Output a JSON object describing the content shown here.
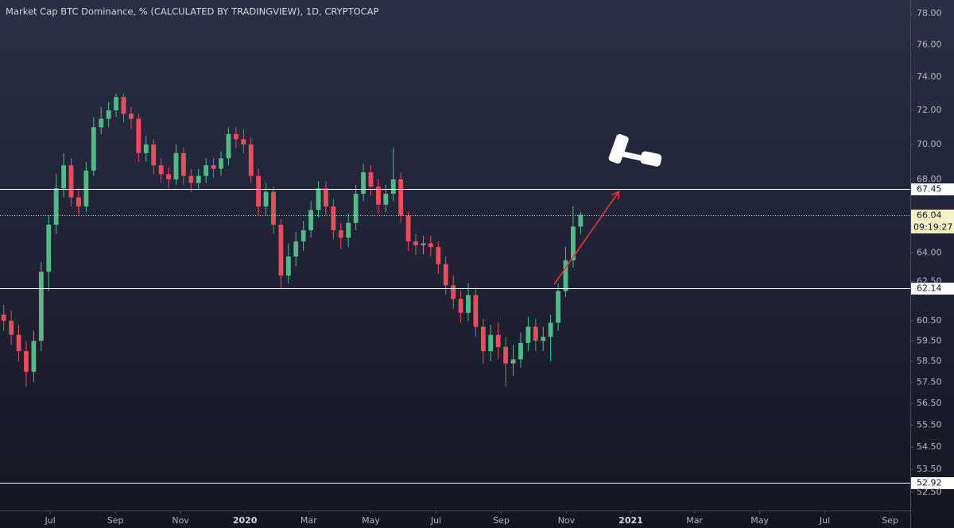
{
  "chart_data": {
    "type": "candlestick",
    "title": "Market Cap BTC Dominance, % (CALCULATED BY TRADINGVIEW), 1D, CRYPTOCAP",
    "categories": [
      null,
      null,
      null,
      null,
      null,
      null,
      null,
      null,
      null,
      null,
      null,
      null,
      null,
      null,
      null,
      null,
      null,
      null,
      null,
      null,
      null,
      null,
      null,
      null,
      null,
      null,
      null,
      null,
      null,
      null,
      null,
      null,
      null,
      null,
      null,
      null,
      null,
      null,
      null,
      null,
      null,
      null,
      null,
      null,
      null,
      null,
      null,
      null,
      null,
      null,
      null,
      null,
      null,
      null,
      null,
      null,
      null,
      null,
      null,
      null,
      null,
      null,
      null,
      null,
      null,
      null,
      null,
      null,
      null,
      null,
      null,
      null,
      null,
      null,
      null,
      null,
      null,
      null
    ],
    "open": [
      60.8,
      60.5,
      59.8,
      59.0,
      58.0,
      59.5,
      63.0,
      65.5,
      67.5,
      68.8,
      67.0,
      66.5,
      68.5,
      71.0,
      71.5,
      72.0,
      72.8,
      71.8,
      71.5,
      69.5,
      70.0,
      68.8,
      68.3,
      68.0,
      69.5,
      68.2,
      67.8,
      68.2,
      68.8,
      68.6,
      69.2,
      70.6,
      70.3,
      70.0,
      68.2,
      66.5,
      67.3,
      65.5,
      62.8,
      63.8,
      64.6,
      65.2,
      66.3,
      67.5,
      66.5,
      65.2,
      64.8,
      65.6,
      67.2,
      68.4,
      67.6,
      66.6,
      67.2,
      68.0,
      66.0,
      64.6,
      64.4,
      64.5,
      64.3,
      63.4,
      62.3,
      61.6,
      60.9,
      61.8,
      60.2,
      59.0,
      59.8,
      59.2,
      58.4,
      58.6,
      59.4,
      60.2,
      59.5,
      59.7,
      60.4,
      62.0,
      63.6,
      65.4
    ],
    "high": [
      61.3,
      61.0,
      60.3,
      59.5,
      60.0,
      63.5,
      66.0,
      68.3,
      69.5,
      69.2,
      67.5,
      69.0,
      71.6,
      72.2,
      72.5,
      73.0,
      73.0,
      72.2,
      71.8,
      70.5,
      70.3,
      69.2,
      68.7,
      70.0,
      69.8,
      68.6,
      68.6,
      69.2,
      69.2,
      69.6,
      71.0,
      71.0,
      70.9,
      70.4,
      68.6,
      67.8,
      67.6,
      65.8,
      64.5,
      65.1,
      65.7,
      66.8,
      67.9,
      67.9,
      66.9,
      65.6,
      66.1,
      67.7,
      68.9,
      68.8,
      68.0,
      67.7,
      69.8,
      68.4,
      66.2,
      65.0,
      64.9,
      64.9,
      64.6,
      63.8,
      62.8,
      62.0,
      62.4,
      62.1,
      60.6,
      60.3,
      60.4,
      59.7,
      59.3,
      59.9,
      60.7,
      60.6,
      60.2,
      60.8,
      62.4,
      64.3,
      66.5,
      66.2
    ],
    "low": [
      60.0,
      59.3,
      58.5,
      57.3,
      57.5,
      59.0,
      62.0,
      65.0,
      67.0,
      66.5,
      66.0,
      66.2,
      68.2,
      70.6,
      71.0,
      71.6,
      71.3,
      70.9,
      69.0,
      69.0,
      68.3,
      67.8,
      67.5,
      67.7,
      67.7,
      67.3,
      67.4,
      67.8,
      68.1,
      68.2,
      68.8,
      69.8,
      69.5,
      67.8,
      66.0,
      66.0,
      65.0,
      62.1,
      62.4,
      63.3,
      64.1,
      64.8,
      65.9,
      66.0,
      64.7,
      64.2,
      64.3,
      65.2,
      66.8,
      67.1,
      66.1,
      66.2,
      66.8,
      65.6,
      64.1,
      63.9,
      63.9,
      63.8,
      62.9,
      61.8,
      61.1,
      60.4,
      60.5,
      59.7,
      58.4,
      58.5,
      58.6,
      57.3,
      57.8,
      58.2,
      59.0,
      59.0,
      59.0,
      58.5,
      60.0,
      61.7,
      63.2,
      65.0
    ],
    "close": [
      60.5,
      59.8,
      59.0,
      58.0,
      59.5,
      63.0,
      65.5,
      67.5,
      68.8,
      67.0,
      66.5,
      68.5,
      71.0,
      71.5,
      72.0,
      72.8,
      71.8,
      71.5,
      69.5,
      70.0,
      68.8,
      68.3,
      68.0,
      69.5,
      68.2,
      67.8,
      68.2,
      68.8,
      68.6,
      69.2,
      70.6,
      70.3,
      70.0,
      68.2,
      66.5,
      67.3,
      65.5,
      62.8,
      63.8,
      64.6,
      65.2,
      66.3,
      67.5,
      66.5,
      65.2,
      64.8,
      65.6,
      67.2,
      68.4,
      67.6,
      66.6,
      67.2,
      68.0,
      66.0,
      64.6,
      64.4,
      64.5,
      64.3,
      63.4,
      62.3,
      61.6,
      60.9,
      61.8,
      60.2,
      59.0,
      59.8,
      59.2,
      58.4,
      58.6,
      59.4,
      60.2,
      59.5,
      59.7,
      60.4,
      62.0,
      63.6,
      65.4,
      66.04
    ],
    "up_color": "#53b987",
    "down_color": "#eb4d5c",
    "log_scale": true,
    "ylim": [
      51.71,
      78.88
    ],
    "yticks": [
      {
        "value": 78,
        "label": "78.00"
      },
      {
        "value": 76,
        "label": "76.00"
      },
      {
        "value": 74,
        "label": "74.00"
      },
      {
        "value": 72,
        "label": "72.00"
      },
      {
        "value": 70,
        "label": "70.00"
      },
      {
        "value": 68,
        "label": "68.00"
      },
      {
        "value": 64,
        "label": "64.00"
      },
      {
        "value": 62.5,
        "label": "62.50"
      },
      {
        "value": 60.5,
        "label": "60.50"
      },
      {
        "value": 59.5,
        "label": "59.50"
      },
      {
        "value": 58.5,
        "label": "58.50"
      },
      {
        "value": 57.5,
        "label": "57.50"
      },
      {
        "value": 56.5,
        "label": "56.50"
      },
      {
        "value": 55.5,
        "label": "55.50"
      },
      {
        "value": 54.5,
        "label": "54.50"
      },
      {
        "value": 53.5,
        "label": "53.50"
      },
      {
        "value": 52.5,
        "label": "52.50"
      }
    ],
    "xlim": [
      -0.5,
      121
    ],
    "xticks": [
      {
        "value": 6.2,
        "label": "Jul"
      },
      {
        "value": 14.9,
        "label": "Sep"
      },
      {
        "value": 23.6,
        "label": "Nov"
      },
      {
        "value": 32.2,
        "label": "2020"
      },
      {
        "value": 40.7,
        "label": "Mar"
      },
      {
        "value": 49.0,
        "label": "May"
      },
      {
        "value": 57.7,
        "label": "Jul"
      },
      {
        "value": 66.4,
        "label": "Sep"
      },
      {
        "value": 75.1,
        "label": "Nov"
      },
      {
        "value": 83.7,
        "label": "2021"
      },
      {
        "value": 92.2,
        "label": "Mar"
      },
      {
        "value": 100.9,
        "label": "May"
      },
      {
        "value": 109.6,
        "label": "Jul"
      },
      {
        "value": 118.3,
        "label": "Sep"
      }
    ],
    "levels": [
      67.45,
      62.14,
      52.92
    ],
    "last_price": 66.04,
    "countdown": "09:19:27"
  }
}
